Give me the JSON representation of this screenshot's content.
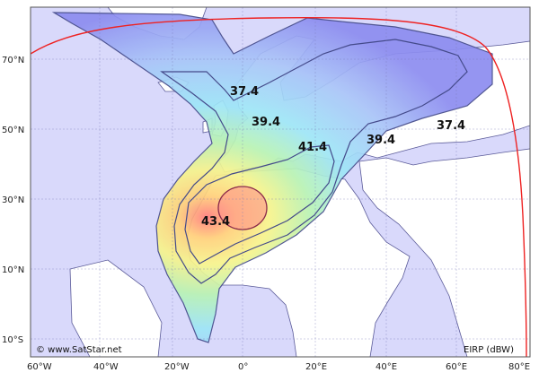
{
  "map": {
    "longitude_labels": [
      "60°W",
      "40°W",
      "20°W",
      "0°",
      "20°E",
      "40°E",
      "60°E",
      "80°E"
    ],
    "latitude_labels": [
      "70°N",
      "50°N",
      "30°N",
      "10°N",
      "10°S"
    ],
    "contours": [
      "37.4",
      "39.4",
      "41.4",
      "43.4"
    ],
    "contour_labels": [
      {
        "value": "37.4"
      },
      {
        "value": "39.4"
      },
      {
        "value": "41.4"
      },
      {
        "value": "39.4"
      },
      {
        "value": "37.4"
      },
      {
        "value": "43.4"
      }
    ],
    "credit": "© www.SatStar.net",
    "unit_label": "EIRP (dBW)"
  },
  "colors": {
    "ocean": "#d9d9fb",
    "land": "#ffffff",
    "coverage_edge": "#8d8df0",
    "coverage_core": "#ff8a8a",
    "horizon_line": "#ee2222",
    "grid": "#b0b0e0"
  }
}
